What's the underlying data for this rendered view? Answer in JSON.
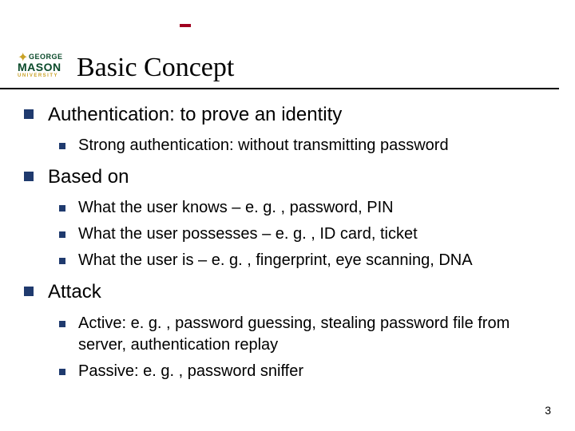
{
  "logo": {
    "line1": "GEORGE",
    "line2": "MASON",
    "subline": "UNIVERSITY",
    "green": "#0a4a2a",
    "gold": "#c9a227"
  },
  "dash_color": "#a00020",
  "title": "Basic Concept",
  "bullet_color": "#1f3a6e",
  "sections": [
    {
      "heading": "Authentication: to prove an identity",
      "items": [
        "Strong authentication: without transmitting password"
      ]
    },
    {
      "heading": "Based on",
      "items": [
        "What the user knows – e. g. , password, PIN",
        "What the user possesses – e. g. , ID card, ticket",
        "What the user is – e. g. , fingerprint, eye scanning, DNA"
      ]
    },
    {
      "heading": "Attack",
      "items": [
        "Active: e. g. , password guessing, stealing password file from server, authentication replay",
        "Passive: e. g. , password sniffer"
      ]
    }
  ],
  "page_number": "3"
}
